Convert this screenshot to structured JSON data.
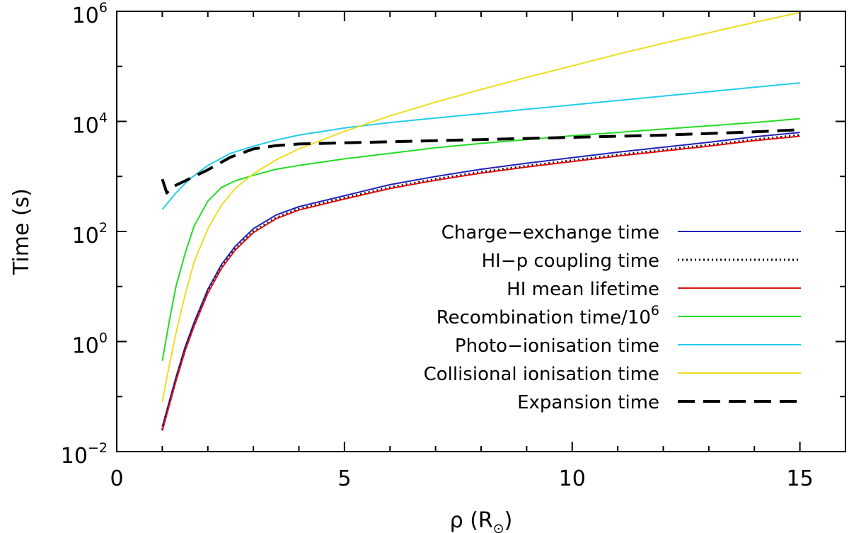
{
  "chart_data": {
    "type": "line",
    "xlabel": "ρ (R",
    "xlabel_sub": "⊙",
    "xlabel_close": ")",
    "ylabel": "Time (s)",
    "xlim": [
      0,
      16
    ],
    "ylim_log10": [
      -2,
      6
    ],
    "yscale": "log",
    "x_ticks": [
      0,
      5,
      10,
      15
    ],
    "x_tick_labels": [
      "0",
      "5",
      "10",
      "15"
    ],
    "y_ticks_log10": [
      -2,
      0,
      2,
      4,
      6
    ],
    "y_tick_labels": [
      {
        "base": "10",
        "exp": "−2"
      },
      {
        "base": "10",
        "exp": "0"
      },
      {
        "base": "10",
        "exp": "2"
      },
      {
        "base": "10",
        "exp": "4"
      },
      {
        "base": "10",
        "exp": "6"
      }
    ],
    "legend_position": "bottom-right",
    "series": [
      {
        "name": "Charge-exchange time",
        "label_main": "Charge−exchange time",
        "label_sup": "",
        "color": "#2222bb",
        "style": "solid",
        "width": 2,
        "x": [
          1.0,
          1.15,
          1.3,
          1.5,
          1.7,
          2.0,
          2.3,
          2.6,
          3.0,
          3.5,
          4,
          5,
          6,
          7,
          8,
          9,
          10,
          11,
          12,
          13,
          14,
          15
        ],
        "log10y": [
          -1.55,
          -1.1,
          -0.65,
          -0.1,
          0.35,
          0.95,
          1.4,
          1.73,
          2.05,
          2.3,
          2.45,
          2.65,
          2.85,
          3.0,
          3.13,
          3.24,
          3.34,
          3.44,
          3.53,
          3.62,
          3.72,
          3.8
        ]
      },
      {
        "name": "HI-p coupling time",
        "label_main": "HI−p coupling time",
        "label_sup": "",
        "color": "#000000",
        "style": "dotted",
        "width": 3,
        "x": [
          1.0,
          1.15,
          1.3,
          1.5,
          1.7,
          2.0,
          2.3,
          2.6,
          3.0,
          3.5,
          4,
          5,
          6,
          7,
          8,
          9,
          10,
          11,
          12,
          13,
          14,
          15
        ],
        "log10y": [
          -1.6,
          -1.15,
          -0.7,
          -0.15,
          0.3,
          0.9,
          1.35,
          1.68,
          2.0,
          2.25,
          2.41,
          2.61,
          2.8,
          2.95,
          3.08,
          3.19,
          3.29,
          3.39,
          3.48,
          3.57,
          3.67,
          3.75
        ]
      },
      {
        "name": "HI mean lifetime",
        "label_main": "HI mean lifetime",
        "label_sup": "",
        "color": "#dd1111",
        "style": "solid",
        "width": 2,
        "x": [
          1.0,
          1.15,
          1.3,
          1.5,
          1.7,
          2.0,
          2.3,
          2.6,
          3.0,
          3.5,
          4,
          5,
          6,
          7,
          8,
          9,
          10,
          11,
          12,
          13,
          14,
          15
        ],
        "log10y": [
          -1.62,
          -1.17,
          -0.72,
          -0.17,
          0.28,
          0.88,
          1.33,
          1.66,
          1.98,
          2.23,
          2.39,
          2.59,
          2.78,
          2.93,
          3.06,
          3.17,
          3.27,
          3.37,
          3.46,
          3.55,
          3.65,
          3.73
        ]
      },
      {
        "name": "Recombination time/10^6",
        "label_main": "Recombination time/10",
        "label_sup": "6",
        "color": "#22dd22",
        "style": "solid",
        "width": 2,
        "x": [
          1.0,
          1.15,
          1.3,
          1.5,
          1.7,
          2.0,
          2.3,
          2.6,
          3.0,
          3.5,
          4,
          5,
          6,
          7,
          8,
          9,
          10,
          11,
          12,
          13,
          14,
          15
        ],
        "log10y": [
          -0.35,
          0.35,
          1.0,
          1.6,
          2.1,
          2.55,
          2.8,
          2.92,
          3.02,
          3.13,
          3.2,
          3.32,
          3.42,
          3.52,
          3.6,
          3.67,
          3.74,
          3.8,
          3.86,
          3.92,
          3.98,
          4.05
        ]
      },
      {
        "name": "Photo-ionisation time",
        "label_main": "Photo−ionisation time",
        "label_sup": "",
        "color": "#22ccee",
        "style": "solid",
        "width": 2,
        "x": [
          1.0,
          1.3,
          1.6,
          2.0,
          2.5,
          3.0,
          3.5,
          4,
          5,
          6,
          7,
          8,
          9,
          10,
          11,
          12,
          13,
          14,
          15
        ],
        "log10y": [
          2.4,
          2.7,
          2.95,
          3.2,
          3.42,
          3.55,
          3.66,
          3.75,
          3.88,
          3.98,
          4.06,
          4.14,
          4.22,
          4.3,
          4.38,
          4.46,
          4.54,
          4.62,
          4.7
        ]
      },
      {
        "name": "Collisional ionisation time",
        "label_main": "Collisional ionisation time",
        "label_sup": "",
        "color": "#eedd22",
        "style": "solid",
        "width": 2,
        "x": [
          1.0,
          1.15,
          1.3,
          1.5,
          1.7,
          2.0,
          2.3,
          2.6,
          3.0,
          3.5,
          4,
          5,
          6,
          7,
          8,
          9,
          10,
          11,
          12,
          13,
          14,
          15
        ],
        "log10y": [
          -1.1,
          -0.45,
          0.15,
          0.85,
          1.45,
          2.05,
          2.48,
          2.78,
          3.05,
          3.3,
          3.5,
          3.82,
          4.1,
          4.35,
          4.58,
          4.8,
          5.01,
          5.22,
          5.42,
          5.61,
          5.8,
          5.98
        ]
      },
      {
        "name": "Expansion time",
        "label_main": "Expansion time",
        "label_sup": "",
        "color": "#000000",
        "style": "dashed",
        "width": 4,
        "x": [
          1.0,
          1.1,
          1.2,
          1.5,
          2.0,
          2.5,
          3.0,
          3.5,
          4,
          5,
          6,
          7,
          8,
          9,
          10,
          11,
          12,
          13,
          14,
          15
        ],
        "log10y": [
          2.95,
          2.7,
          2.8,
          2.92,
          3.12,
          3.35,
          3.5,
          3.56,
          3.59,
          3.61,
          3.63,
          3.65,
          3.67,
          3.69,
          3.71,
          3.73,
          3.75,
          3.78,
          3.81,
          3.85
        ]
      }
    ]
  }
}
